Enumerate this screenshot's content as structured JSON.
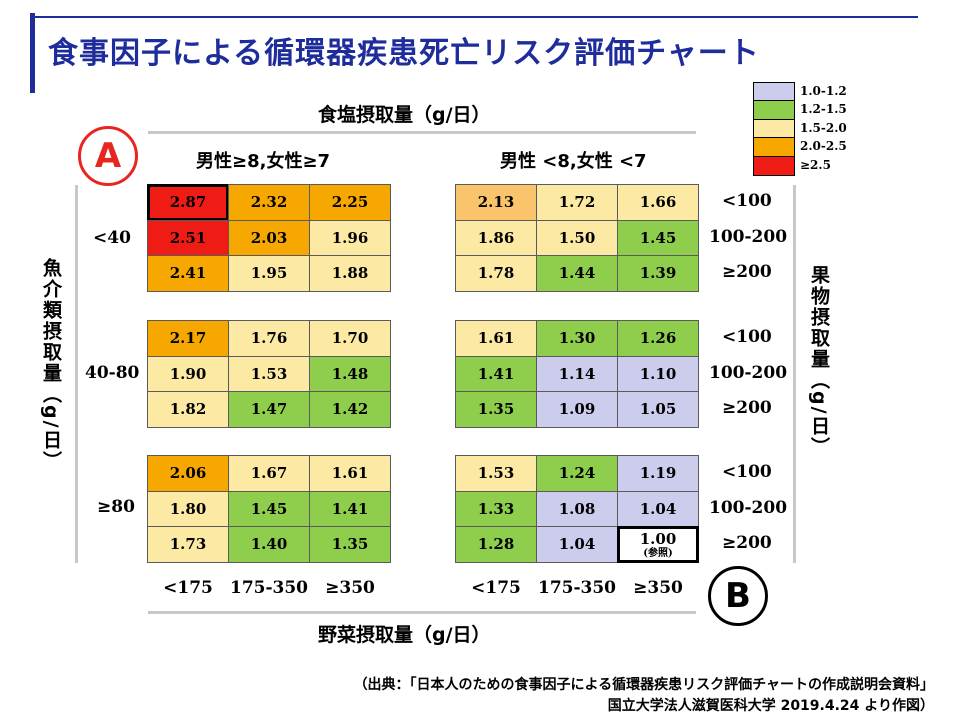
{
  "title": "食事因子による循環器疾患死亡リスク評価チャート",
  "axes": {
    "salt": "食塩摂取量（g/日）",
    "fish": "魚介類摂取量（g/日）",
    "fruit": "果物摂取量（g/日）",
    "vegetable": "野菜摂取量（g/日）"
  },
  "badges": {
    "a": "A",
    "b": "B"
  },
  "panel_headers": {
    "left": "男性≥8,女性≥7",
    "right": "男性 <8,女性 <7"
  },
  "fish_labels": [
    "<40",
    "40-80",
    "≥80"
  ],
  "fruit_labels": [
    "<100",
    "100-200",
    "≥200"
  ],
  "vegetable_labels": [
    "<175",
    "175-350",
    "≥350"
  ],
  "legend": [
    {
      "label": "1.0-1.2",
      "color": "#ccccec"
    },
    {
      "label": "1.2-1.5",
      "color": "#8fcd4d"
    },
    {
      "label": "1.5-2.0",
      "color": "#fbe9a4"
    },
    {
      "label": "2.0-2.5",
      "color": "#f6a800"
    },
    {
      "label": "≥2.5",
      "color": "#ef1c15"
    }
  ],
  "chart_data": {
    "type": "heatmap",
    "title": "食事因子による循環器疾患死亡リスク評価チャート",
    "salt_categories": [
      "男性≥8,女性≥7",
      "男性 <8,女性 <7"
    ],
    "fish_categories": [
      "<40",
      "40-80",
      "≥80"
    ],
    "fruit_categories": [
      "<100",
      "100-200",
      "≥200"
    ],
    "vegetable_categories": [
      "<175",
      "175-350",
      "≥350"
    ],
    "reference_note": "(参照)",
    "cells": [
      {
        "salt": 0,
        "fish": 0,
        "values": [
          [
            2.87,
            2.32,
            2.25
          ],
          [
            2.51,
            2.03,
            1.96
          ],
          [
            2.41,
            1.95,
            1.88
          ]
        ],
        "colors": [
          [
            "#ef1c15",
            "#f6a800",
            "#f6a800"
          ],
          [
            "#ef1c15",
            "#f6a800",
            "#fbe9a4"
          ],
          [
            "#f6a800",
            "#fbe9a4",
            "#fbe9a4"
          ]
        ]
      },
      {
        "salt": 1,
        "fish": 0,
        "values": [
          [
            2.13,
            1.72,
            1.66
          ],
          [
            1.86,
            1.5,
            1.45
          ],
          [
            1.78,
            1.44,
            1.39
          ]
        ],
        "colors": [
          [
            "#f9c46c",
            "#fbe9a4",
            "#fbe9a4"
          ],
          [
            "#fbe9a4",
            "#fbe9a4",
            "#8fcd4d"
          ],
          [
            "#fbe9a4",
            "#8fcd4d",
            "#8fcd4d"
          ]
        ]
      },
      {
        "salt": 0,
        "fish": 1,
        "values": [
          [
            2.17,
            1.76,
            1.7
          ],
          [
            1.9,
            1.53,
            1.48
          ],
          [
            1.82,
            1.47,
            1.42
          ]
        ],
        "colors": [
          [
            "#f6a800",
            "#fbe9a4",
            "#fbe9a4"
          ],
          [
            "#fbe9a4",
            "#fbe9a4",
            "#8fcd4d"
          ],
          [
            "#fbe9a4",
            "#8fcd4d",
            "#8fcd4d"
          ]
        ]
      },
      {
        "salt": 1,
        "fish": 1,
        "values": [
          [
            1.61,
            1.3,
            1.26
          ],
          [
            1.41,
            1.14,
            1.1
          ],
          [
            1.35,
            1.09,
            1.05
          ]
        ],
        "colors": [
          [
            "#fbe9a4",
            "#8fcd4d",
            "#8fcd4d"
          ],
          [
            "#8fcd4d",
            "#ccccec",
            "#ccccec"
          ],
          [
            "#8fcd4d",
            "#ccccec",
            "#ccccec"
          ]
        ]
      },
      {
        "salt": 0,
        "fish": 2,
        "values": [
          [
            2.06,
            1.67,
            1.61
          ],
          [
            1.8,
            1.45,
            1.41
          ],
          [
            1.73,
            1.4,
            1.35
          ]
        ],
        "colors": [
          [
            "#f6a800",
            "#fbe9a4",
            "#fbe9a4"
          ],
          [
            "#fbe9a4",
            "#8fcd4d",
            "#8fcd4d"
          ],
          [
            "#fbe9a4",
            "#8fcd4d",
            "#8fcd4d"
          ]
        ]
      },
      {
        "salt": 1,
        "fish": 2,
        "values": [
          [
            1.53,
            1.24,
            1.19
          ],
          [
            1.33,
            1.08,
            1.04
          ],
          [
            1.28,
            1.04,
            1.0
          ]
        ],
        "colors": [
          [
            "#fbe9a4",
            "#8fcd4d",
            "#ccccec"
          ],
          [
            "#8fcd4d",
            "#ccccec",
            "#ccccec"
          ],
          [
            "#8fcd4d",
            "#ccccec",
            "#ffffff"
          ]
        ]
      }
    ]
  },
  "source": {
    "line1": "（出典：「日本人のための食事因子による循環器疾患リスク評価チャートの作成説明会資料」",
    "line2": "国立大学法人滋賀医科大学 2019.4.24 より作図）"
  }
}
